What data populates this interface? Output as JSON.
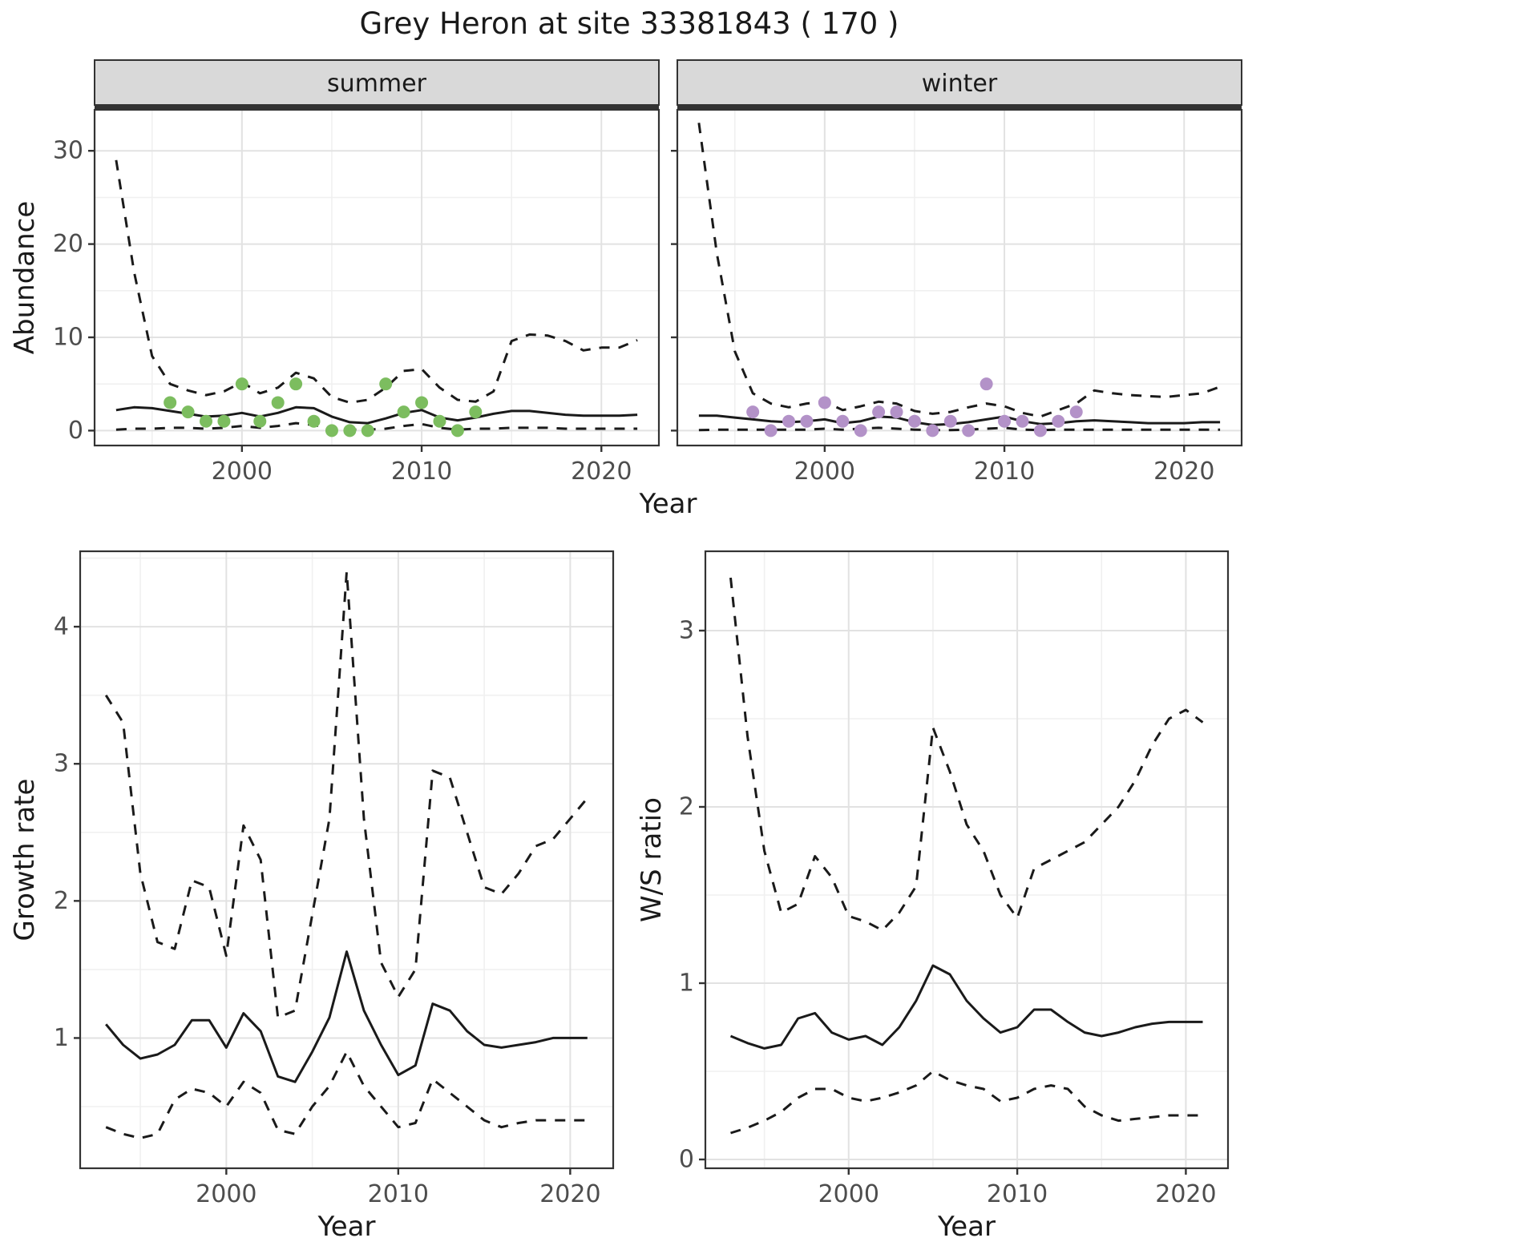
{
  "title": "Grey Heron at site 33381843 ( 170 )",
  "colors": {
    "summer_point": "#7cbd5f",
    "winter_point": "#b392c8",
    "line": "#1a1a1a",
    "grid_major": "#e2e2e2",
    "grid_minor": "#f0f0f0",
    "strip_bg": "#d9d9d9",
    "panel_border": "#333333",
    "tick_text": "#4d4d4d",
    "title_text": "#1a1a1a"
  },
  "chart_data": [
    {
      "type": "line",
      "facet": "summer",
      "xlabel": "Year",
      "ylabel": "Abundance",
      "xlim": [
        1991.8,
        2023.2
      ],
      "ylim": [
        -1.6,
        34.4
      ],
      "xticks": [
        2000,
        2010,
        2020
      ],
      "yticks": [
        0,
        10,
        20,
        30
      ],
      "x": [
        1993,
        1994,
        1995,
        1996,
        1997,
        1998,
        1999,
        2000,
        2001,
        2002,
        2003,
        2004,
        2005,
        2006,
        2007,
        2008,
        2009,
        2010,
        2011,
        2012,
        2013,
        2014,
        2015,
        2016,
        2017,
        2018,
        2019,
        2020,
        2021,
        2022
      ],
      "series": [
        {
          "name": "mean",
          "style": "solid",
          "values": [
            2.2,
            2.5,
            2.4,
            2.1,
            1.8,
            1.5,
            1.6,
            1.9,
            1.5,
            1.9,
            2.5,
            2.4,
            1.5,
            0.9,
            0.8,
            1.3,
            1.9,
            2.2,
            1.4,
            1.1,
            1.4,
            1.8,
            2.1,
            2.1,
            1.9,
            1.7,
            1.6,
            1.6,
            1.6,
            1.7
          ]
        },
        {
          "name": "upper_ci",
          "style": "dashed",
          "values": [
            29,
            17,
            8,
            5.0,
            4.3,
            3.8,
            4.2,
            5.2,
            4.0,
            4.6,
            6.2,
            5.6,
            3.6,
            3.0,
            3.3,
            4.6,
            6.4,
            6.6,
            4.6,
            3.3,
            3.1,
            4.2,
            9.6,
            10.3,
            10.2,
            9.6,
            8.6,
            8.9,
            8.9,
            9.7
          ]
        },
        {
          "name": "lower_ci",
          "style": "dashed",
          "values": [
            0.1,
            0.2,
            0.2,
            0.3,
            0.3,
            0.2,
            0.3,
            0.5,
            0.3,
            0.5,
            0.8,
            0.6,
            0.2,
            0.1,
            0.1,
            0.2,
            0.5,
            0.7,
            0.3,
            0.1,
            0.2,
            0.2,
            0.3,
            0.3,
            0.3,
            0.2,
            0.2,
            0.2,
            0.2,
            0.2
          ]
        }
      ],
      "points": {
        "color_key": "summer_point",
        "data": [
          [
            1996,
            3
          ],
          [
            1997,
            2
          ],
          [
            1998,
            1
          ],
          [
            1999,
            1
          ],
          [
            2000,
            5
          ],
          [
            2001,
            1
          ],
          [
            2002,
            3
          ],
          [
            2003,
            5
          ],
          [
            2004,
            1
          ],
          [
            2005,
            0
          ],
          [
            2006,
            0
          ],
          [
            2007,
            0
          ],
          [
            2008,
            5
          ],
          [
            2009,
            2
          ],
          [
            2010,
            3
          ],
          [
            2011,
            1
          ],
          [
            2012,
            0
          ],
          [
            2013,
            2
          ]
        ]
      }
    },
    {
      "type": "line",
      "facet": "winter",
      "xlabel": "Year",
      "ylabel": "Abundance",
      "xlim": [
        1991.8,
        2023.2
      ],
      "ylim": [
        -1.6,
        34.4
      ],
      "xticks": [
        2000,
        2010,
        2020
      ],
      "yticks": [
        0,
        10,
        20,
        30
      ],
      "x": [
        1993,
        1994,
        1995,
        1996,
        1997,
        1998,
        1999,
        2000,
        2001,
        2002,
        2003,
        2004,
        2005,
        2006,
        2007,
        2008,
        2009,
        2010,
        2011,
        2012,
        2013,
        2014,
        2015,
        2016,
        2017,
        2018,
        2019,
        2020,
        2021,
        2022
      ],
      "series": [
        {
          "name": "mean",
          "style": "solid",
          "values": [
            1.6,
            1.6,
            1.4,
            1.2,
            1.0,
            0.9,
            1.0,
            1.2,
            0.8,
            1.0,
            1.5,
            1.4,
            0.9,
            0.6,
            0.7,
            0.9,
            1.2,
            1.5,
            1.0,
            0.7,
            0.8,
            1.0,
            1.1,
            1.0,
            0.9,
            0.8,
            0.8,
            0.8,
            0.9,
            0.9
          ]
        },
        {
          "name": "upper_ci",
          "style": "dashed",
          "values": [
            33,
            19,
            8.5,
            4.0,
            2.9,
            2.5,
            2.9,
            3.1,
            2.2,
            2.6,
            3.1,
            2.9,
            2.1,
            1.8,
            2.0,
            2.5,
            2.9,
            2.6,
            1.9,
            1.5,
            2.2,
            2.9,
            4.3,
            4.0,
            3.8,
            3.7,
            3.6,
            3.8,
            4.0,
            4.7
          ]
        },
        {
          "name": "lower_ci",
          "style": "dashed",
          "values": [
            0.05,
            0.1,
            0.1,
            0.1,
            0.1,
            0.1,
            0.1,
            0.2,
            0.1,
            0.2,
            0.3,
            0.2,
            0.1,
            0.05,
            0.05,
            0.1,
            0.2,
            0.3,
            0.1,
            0.05,
            0.1,
            0.1,
            0.1,
            0.1,
            0.1,
            0.1,
            0.1,
            0.1,
            0.1,
            0.1
          ]
        }
      ],
      "points": {
        "color_key": "winter_point",
        "data": [
          [
            1996,
            2
          ],
          [
            1997,
            0
          ],
          [
            1998,
            1
          ],
          [
            1999,
            1
          ],
          [
            2000,
            3
          ],
          [
            2001,
            1
          ],
          [
            2002,
            0
          ],
          [
            2003,
            2
          ],
          [
            2004,
            2
          ],
          [
            2005,
            1
          ],
          [
            2006,
            0
          ],
          [
            2007,
            1
          ],
          [
            2008,
            0
          ],
          [
            2009,
            5
          ],
          [
            2010,
            1
          ],
          [
            2011,
            1
          ],
          [
            2012,
            0
          ],
          [
            2013,
            1
          ],
          [
            2014,
            2
          ]
        ]
      }
    },
    {
      "type": "line",
      "facet": "",
      "xlabel": "Year",
      "ylabel": "Growth rate",
      "xlim": [
        1991.5,
        2022.5
      ],
      "ylim": [
        0.05,
        4.55
      ],
      "xticks": [
        2000,
        2010,
        2020
      ],
      "yticks": [
        1,
        2,
        3,
        4
      ],
      "x": [
        1993,
        1994,
        1995,
        1996,
        1997,
        1998,
        1999,
        2000,
        2001,
        2002,
        2003,
        2004,
        2005,
        2006,
        2007,
        2008,
        2009,
        2010,
        2011,
        2012,
        2013,
        2014,
        2015,
        2016,
        2017,
        2018,
        2019,
        2020,
        2021
      ],
      "series": [
        {
          "name": "mean",
          "style": "solid",
          "values": [
            1.1,
            0.95,
            0.85,
            0.88,
            0.95,
            1.13,
            1.13,
            0.93,
            1.18,
            1.05,
            0.72,
            0.68,
            0.9,
            1.15,
            1.63,
            1.2,
            0.95,
            0.73,
            0.8,
            1.25,
            1.2,
            1.05,
            0.95,
            0.93,
            0.95,
            0.97,
            1.0,
            1.0,
            1.0
          ]
        },
        {
          "name": "upper_ci",
          "style": "dashed",
          "values": [
            3.5,
            3.3,
            2.2,
            1.7,
            1.65,
            2.15,
            2.1,
            1.6,
            2.55,
            2.3,
            1.15,
            1.2,
            1.9,
            2.6,
            4.4,
            2.6,
            1.55,
            1.3,
            1.5,
            2.95,
            2.9,
            2.5,
            2.1,
            2.05,
            2.2,
            2.4,
            2.45,
            2.6,
            2.75
          ]
        },
        {
          "name": "lower_ci",
          "style": "dashed",
          "values": [
            0.35,
            0.3,
            0.27,
            0.3,
            0.55,
            0.63,
            0.6,
            0.5,
            0.68,
            0.6,
            0.33,
            0.3,
            0.5,
            0.65,
            0.9,
            0.65,
            0.5,
            0.35,
            0.38,
            0.7,
            0.6,
            0.5,
            0.4,
            0.35,
            0.38,
            0.4,
            0.4,
            0.4,
            0.4
          ]
        }
      ]
    },
    {
      "type": "line",
      "facet": "",
      "xlabel": "Year",
      "ylabel": "W/S ratio",
      "xlim": [
        1991.5,
        2022.5
      ],
      "ylim": [
        -0.05,
        3.45
      ],
      "xticks": [
        2000,
        2010,
        2020
      ],
      "yticks": [
        0,
        1,
        2,
        3
      ],
      "x": [
        1993,
        1994,
        1995,
        1996,
        1997,
        1998,
        1999,
        2000,
        2001,
        2002,
        2003,
        2004,
        2005,
        2006,
        2007,
        2008,
        2009,
        2010,
        2011,
        2012,
        2013,
        2014,
        2015,
        2016,
        2017,
        2018,
        2019,
        2020,
        2021
      ],
      "series": [
        {
          "name": "mean",
          "style": "solid",
          "values": [
            0.7,
            0.66,
            0.63,
            0.65,
            0.8,
            0.83,
            0.72,
            0.68,
            0.7,
            0.65,
            0.75,
            0.9,
            1.1,
            1.05,
            0.9,
            0.8,
            0.72,
            0.75,
            0.85,
            0.85,
            0.78,
            0.72,
            0.7,
            0.72,
            0.75,
            0.77,
            0.78,
            0.78,
            0.78
          ]
        },
        {
          "name": "upper_ci",
          "style": "dashed",
          "values": [
            3.3,
            2.4,
            1.75,
            1.4,
            1.45,
            1.72,
            1.6,
            1.38,
            1.35,
            1.3,
            1.4,
            1.55,
            2.45,
            2.2,
            1.9,
            1.75,
            1.5,
            1.37,
            1.65,
            1.7,
            1.75,
            1.8,
            1.9,
            2.0,
            2.15,
            2.35,
            2.5,
            2.55,
            2.48
          ]
        },
        {
          "name": "lower_ci",
          "style": "dashed",
          "values": [
            0.15,
            0.18,
            0.22,
            0.27,
            0.35,
            0.4,
            0.4,
            0.35,
            0.33,
            0.35,
            0.38,
            0.42,
            0.5,
            0.45,
            0.42,
            0.4,
            0.33,
            0.35,
            0.4,
            0.42,
            0.4,
            0.3,
            0.25,
            0.22,
            0.23,
            0.24,
            0.25,
            0.25,
            0.25
          ]
        }
      ]
    }
  ]
}
